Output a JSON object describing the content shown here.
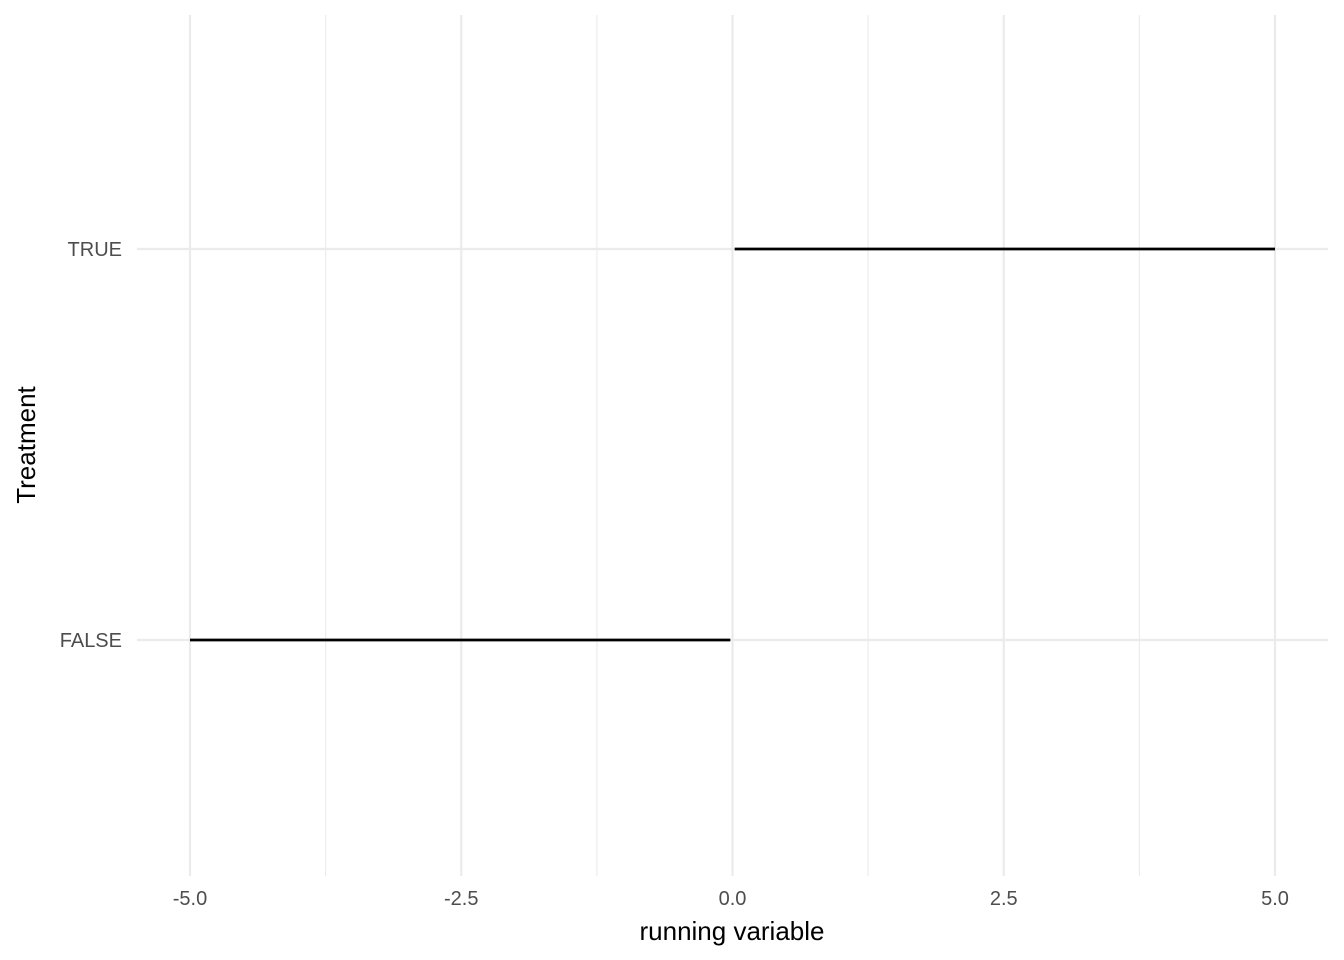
{
  "chart_data": {
    "type": "line",
    "xlabel": "running variable",
    "ylabel": "Treatment",
    "xlim": [
      -5.0,
      5.0
    ],
    "x_ticks": [
      {
        "value": -5.0,
        "label": "-5.0"
      },
      {
        "value": -2.5,
        "label": "-2.5"
      },
      {
        "value": 0.0,
        "label": "0.0"
      },
      {
        "value": 2.5,
        "label": "2.5"
      },
      {
        "value": 5.0,
        "label": "5.0"
      }
    ],
    "y_categories": [
      "FALSE",
      "TRUE"
    ],
    "grid": true,
    "legend": "none",
    "series": [
      {
        "x": [
          -5.0,
          -0.02
        ],
        "y": [
          "FALSE",
          "FALSE"
        ],
        "color": "#000000"
      },
      {
        "x": [
          0.02,
          5.0
        ],
        "y": [
          "TRUE",
          "TRUE"
        ],
        "color": "#000000"
      }
    ]
  },
  "colors": {
    "background": "#ffffff",
    "grid": "#ebebeb",
    "tick_text": "#4d4d4d",
    "axis_title": "#000000",
    "line": "#000000"
  }
}
